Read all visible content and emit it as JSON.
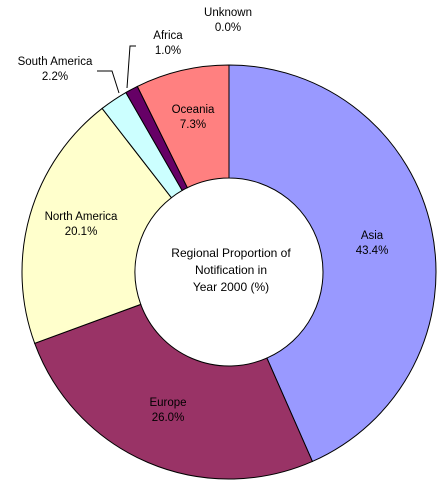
{
  "chart_data": {
    "type": "pie",
    "subtype": "donut",
    "center_title_lines": [
      "Regional Proportion of",
      "Notification in",
      "Year 2000 (%)"
    ],
    "slices": [
      {
        "name": "Asia",
        "value": 43.4,
        "label": "43.4%",
        "color": "#9999ff"
      },
      {
        "name": "Europe",
        "value": 26.0,
        "label": "26.0%",
        "color": "#993366"
      },
      {
        "name": "North America",
        "value": 20.1,
        "label": "20.1%",
        "color": "#ffffcc"
      },
      {
        "name": "South America",
        "value": 2.2,
        "label": "2.2%",
        "color": "#ccffff"
      },
      {
        "name": "Africa",
        "value": 1.0,
        "label": "1.0%",
        "color": "#660066"
      },
      {
        "name": "Oceania",
        "value": 7.3,
        "label": "7.3%",
        "color": "#ff8080"
      },
      {
        "name": "Unknown",
        "value": 0.0,
        "label": "0.0%",
        "color": "#0066cc"
      }
    ],
    "border_color": "#000000",
    "background": "#ffffff"
  }
}
